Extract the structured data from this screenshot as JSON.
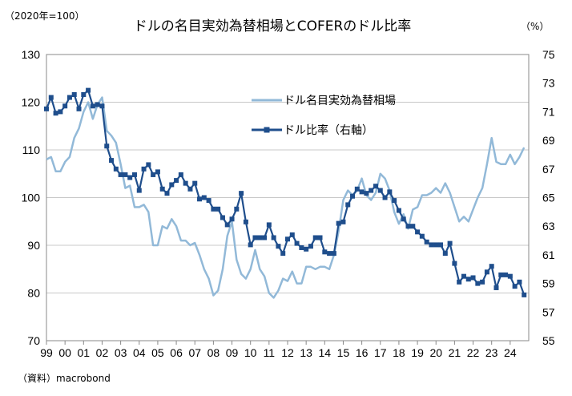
{
  "chart_data": {
    "type": "line",
    "title": "ドルの名目実効為替相場とCOFERのドル比率",
    "left_unit": "（2020年=100）",
    "right_unit": "（%）",
    "source": "（資料）macrobond",
    "x_ticks": [
      "99",
      "00",
      "01",
      "02",
      "03",
      "04",
      "05",
      "06",
      "07",
      "08",
      "09",
      "10",
      "11",
      "12",
      "13",
      "14",
      "15",
      "16",
      "17",
      "18",
      "19",
      "20",
      "21",
      "22",
      "23",
      "24"
    ],
    "left_axis": {
      "min": 70,
      "max": 130,
      "ticks": [
        70,
        80,
        90,
        100,
        110,
        120,
        130
      ]
    },
    "right_axis": {
      "min": 55,
      "max": 75,
      "ticks": [
        55,
        57,
        59,
        61,
        63,
        65,
        67,
        69,
        71,
        73,
        75
      ]
    },
    "colors": {
      "neer": "#92b9d8",
      "cofer": "#1f4e8c"
    },
    "series": [
      {
        "name": "ドル名目実効為替相場",
        "axis": "left",
        "style": "line",
        "points": [
          [
            1999.0,
            108
          ],
          [
            1999.25,
            108.5
          ],
          [
            1999.5,
            105.5
          ],
          [
            1999.75,
            105.5
          ],
          [
            2000.0,
            107.5
          ],
          [
            2000.25,
            108.5
          ],
          [
            2000.5,
            112.5
          ],
          [
            2000.75,
            114.5
          ],
          [
            2001.0,
            118
          ],
          [
            2001.25,
            120
          ],
          [
            2001.5,
            116.5
          ],
          [
            2001.75,
            119.5
          ],
          [
            2002.0,
            121
          ],
          [
            2002.25,
            114
          ],
          [
            2002.5,
            113
          ],
          [
            2002.75,
            111.5
          ],
          [
            2003.0,
            107
          ],
          [
            2003.25,
            102
          ],
          [
            2003.5,
            102.5
          ],
          [
            2003.75,
            98
          ],
          [
            2004.0,
            98
          ],
          [
            2004.25,
            98.5
          ],
          [
            2004.5,
            97
          ],
          [
            2004.75,
            90
          ],
          [
            2005.0,
            90
          ],
          [
            2005.25,
            94
          ],
          [
            2005.5,
            93.5
          ],
          [
            2005.75,
            95.5
          ],
          [
            2006.0,
            94
          ],
          [
            2006.25,
            91
          ],
          [
            2006.5,
            91
          ],
          [
            2006.75,
            90
          ],
          [
            2007.0,
            90.5
          ],
          [
            2007.25,
            88
          ],
          [
            2007.5,
            85
          ],
          [
            2007.75,
            83
          ],
          [
            2008.0,
            79.5
          ],
          [
            2008.25,
            80.5
          ],
          [
            2008.5,
            85
          ],
          [
            2008.75,
            92
          ],
          [
            2009.0,
            95
          ],
          [
            2009.25,
            87
          ],
          [
            2009.5,
            84
          ],
          [
            2009.75,
            83
          ],
          [
            2010.0,
            85
          ],
          [
            2010.25,
            89
          ],
          [
            2010.5,
            85
          ],
          [
            2010.75,
            83.5
          ],
          [
            2011.0,
            80
          ],
          [
            2011.25,
            79
          ],
          [
            2011.5,
            80.5
          ],
          [
            2011.75,
            83
          ],
          [
            2012.0,
            82.5
          ],
          [
            2012.25,
            84.5
          ],
          [
            2012.5,
            82
          ],
          [
            2012.75,
            82
          ],
          [
            2013.0,
            85.5
          ],
          [
            2013.25,
            85.5
          ],
          [
            2013.5,
            85
          ],
          [
            2013.75,
            85.5
          ],
          [
            2014.0,
            85.5
          ],
          [
            2014.25,
            85
          ],
          [
            2014.5,
            88
          ],
          [
            2014.75,
            93
          ],
          [
            2015.0,
            99.5
          ],
          [
            2015.25,
            101.5
          ],
          [
            2015.5,
            100.5
          ],
          [
            2015.75,
            101.5
          ],
          [
            2016.0,
            104
          ],
          [
            2016.25,
            100.5
          ],
          [
            2016.5,
            99.5
          ],
          [
            2016.75,
            101
          ],
          [
            2017.0,
            105
          ],
          [
            2017.25,
            104
          ],
          [
            2017.5,
            101.5
          ],
          [
            2017.75,
            97
          ],
          [
            2018.0,
            94.5
          ],
          [
            2018.25,
            96.5
          ],
          [
            2018.5,
            93.5
          ],
          [
            2018.75,
            97.5
          ],
          [
            2019.0,
            98
          ],
          [
            2019.25,
            100.5
          ],
          [
            2019.5,
            100.5
          ],
          [
            2019.75,
            101
          ],
          [
            2020.0,
            102
          ],
          [
            2020.25,
            101
          ],
          [
            2020.5,
            103
          ],
          [
            2020.75,
            101
          ],
          [
            2021.0,
            98
          ],
          [
            2021.25,
            95
          ],
          [
            2021.5,
            96
          ],
          [
            2021.75,
            95
          ],
          [
            2022.0,
            97.5
          ],
          [
            2022.25,
            100
          ],
          [
            2022.5,
            102
          ],
          [
            2022.75,
            107
          ],
          [
            2023.0,
            112.5
          ],
          [
            2023.25,
            107.5
          ],
          [
            2023.5,
            107
          ],
          [
            2023.75,
            107
          ],
          [
            2024.0,
            109
          ],
          [
            2024.25,
            107
          ],
          [
            2024.5,
            108.5
          ],
          [
            2024.75,
            110.5
          ]
        ]
      },
      {
        "name": "ドル比率（右軸）",
        "axis": "right",
        "style": "line-marker",
        "points": [
          [
            1999.0,
            71.2
          ],
          [
            1999.25,
            72.0
          ],
          [
            1999.5,
            70.9
          ],
          [
            1999.75,
            71.0
          ],
          [
            2000.0,
            71.4
          ],
          [
            2000.25,
            72.0
          ],
          [
            2000.5,
            72.2
          ],
          [
            2000.75,
            71.2
          ],
          [
            2001.0,
            72.2
          ],
          [
            2001.25,
            72.5
          ],
          [
            2001.5,
            71.4
          ],
          [
            2001.75,
            71.5
          ],
          [
            2002.0,
            71.4
          ],
          [
            2002.25,
            68.6
          ],
          [
            2002.5,
            67.6
          ],
          [
            2002.75,
            67.0
          ],
          [
            2003.0,
            66.6
          ],
          [
            2003.25,
            66.6
          ],
          [
            2003.5,
            66.4
          ],
          [
            2003.75,
            66.6
          ],
          [
            2004.0,
            65.5
          ],
          [
            2004.25,
            67.0
          ],
          [
            2004.5,
            67.3
          ],
          [
            2004.75,
            66.6
          ],
          [
            2005.0,
            66.8
          ],
          [
            2005.25,
            65.6
          ],
          [
            2005.5,
            65.3
          ],
          [
            2005.75,
            65.9
          ],
          [
            2006.0,
            66.2
          ],
          [
            2006.25,
            66.6
          ],
          [
            2006.5,
            66.0
          ],
          [
            2006.75,
            65.6
          ],
          [
            2007.0,
            66.0
          ],
          [
            2007.25,
            64.9
          ],
          [
            2007.5,
            65.0
          ],
          [
            2007.75,
            64.8
          ],
          [
            2008.0,
            64.2
          ],
          [
            2008.25,
            64.2
          ],
          [
            2008.5,
            63.6
          ],
          [
            2008.75,
            63.1
          ],
          [
            2009.0,
            63.5
          ],
          [
            2009.25,
            64.2
          ],
          [
            2009.5,
            65.3
          ],
          [
            2009.75,
            63.3
          ],
          [
            2010.0,
            61.7
          ],
          [
            2010.25,
            62.2
          ],
          [
            2010.5,
            62.2
          ],
          [
            2010.75,
            62.2
          ],
          [
            2011.0,
            63.1
          ],
          [
            2011.25,
            62.2
          ],
          [
            2011.5,
            61.6
          ],
          [
            2011.75,
            61.1
          ],
          [
            2012.0,
            62.1
          ],
          [
            2012.25,
            62.4
          ],
          [
            2012.5,
            61.8
          ],
          [
            2012.75,
            61.5
          ],
          [
            2013.0,
            61.4
          ],
          [
            2013.25,
            61.6
          ],
          [
            2013.5,
            62.2
          ],
          [
            2013.75,
            62.2
          ],
          [
            2014.0,
            61.2
          ],
          [
            2014.25,
            61.1
          ],
          [
            2014.5,
            61.1
          ],
          [
            2014.75,
            63.2
          ],
          [
            2015.0,
            63.3
          ],
          [
            2015.25,
            64.5
          ],
          [
            2015.5,
            65.1
          ],
          [
            2015.75,
            65.6
          ],
          [
            2016.0,
            65.4
          ],
          [
            2016.25,
            65.3
          ],
          [
            2016.5,
            65.5
          ],
          [
            2016.75,
            65.8
          ],
          [
            2017.0,
            65.5
          ],
          [
            2017.25,
            65.0
          ],
          [
            2017.5,
            65.4
          ],
          [
            2017.75,
            64.8
          ],
          [
            2018.0,
            64.1
          ],
          [
            2018.25,
            63.5
          ],
          [
            2018.5,
            63.0
          ],
          [
            2018.75,
            63.0
          ],
          [
            2019.0,
            62.6
          ],
          [
            2019.25,
            62.3
          ],
          [
            2019.5,
            61.9
          ],
          [
            2019.75,
            61.7
          ],
          [
            2020.0,
            61.7
          ],
          [
            2020.25,
            61.7
          ],
          [
            2020.5,
            61.1
          ],
          [
            2020.75,
            61.8
          ],
          [
            2021.0,
            60.4
          ],
          [
            2021.25,
            59.1
          ],
          [
            2021.5,
            59.5
          ],
          [
            2021.75,
            59.3
          ],
          [
            2022.0,
            59.4
          ],
          [
            2022.25,
            59.0
          ],
          [
            2022.5,
            59.1
          ],
          [
            2022.75,
            59.8
          ],
          [
            2023.0,
            60.2
          ],
          [
            2023.25,
            58.7
          ],
          [
            2023.5,
            59.6
          ],
          [
            2023.75,
            59.6
          ],
          [
            2024.0,
            59.5
          ],
          [
            2024.25,
            58.8
          ],
          [
            2024.5,
            59.1
          ],
          [
            2024.75,
            58.2
          ]
        ]
      }
    ]
  }
}
